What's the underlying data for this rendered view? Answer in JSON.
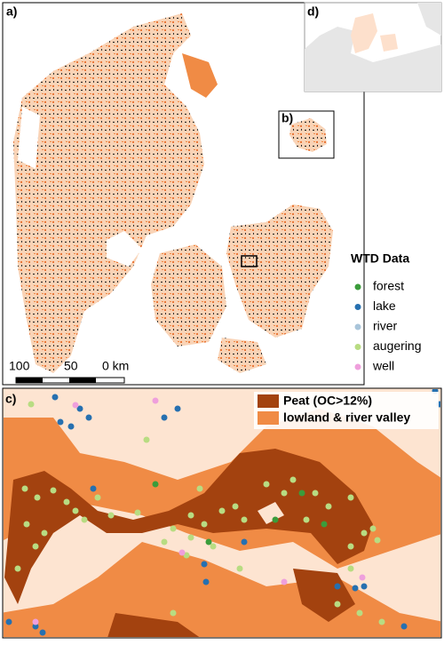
{
  "panels": {
    "a": "a)",
    "b": "b)",
    "c": "c)",
    "d": "d)"
  },
  "scale_bar": {
    "labels": [
      "100",
      "50",
      "0 km"
    ]
  },
  "wtd_legend": {
    "title": "WTD Data",
    "items": [
      {
        "label": "forest",
        "color": "#3b9c3b"
      },
      {
        "label": "lake",
        "color": "#2670b0"
      },
      {
        "label": "river",
        "color": "#a9c5da"
      },
      {
        "label": "augering",
        "color": "#b8dc82"
      },
      {
        "label": "well",
        "color": "#ef9fdc"
      }
    ]
  },
  "land_legend": {
    "items": [
      {
        "label": "Peat (OC>12%)",
        "color": "#a3420f"
      },
      {
        "label": "lowland & river valley",
        "color": "#f08b45"
      }
    ]
  }
}
